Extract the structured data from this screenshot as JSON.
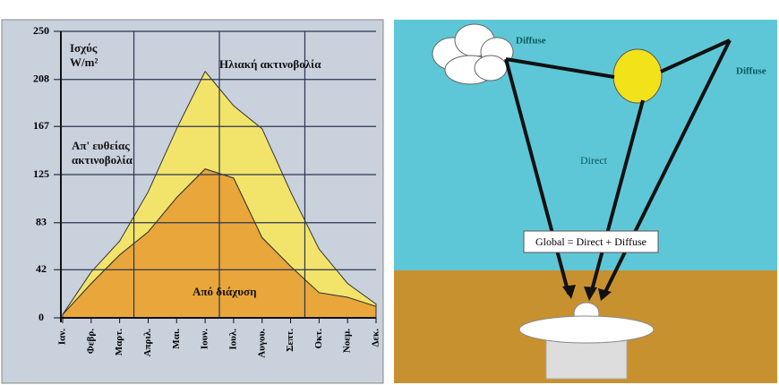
{
  "chart_data": {
    "type": "area",
    "annotation": "Ηλιακή ακτινοβολία",
    "y_label": "Ισχύς W/m²",
    "categories": [
      "Ιαν.",
      "Φεβρ.",
      "Μαρτ.",
      "Απριλ.",
      "Μαι.",
      "Ιουν.",
      "Ιουλ.",
      "Αυγου.",
      "Σεπτ.",
      "Οκτ.",
      "Νοεμ.",
      "Δεκ."
    ],
    "series": [
      {
        "name": "Από διάχυση",
        "color": "#e9a63a",
        "values": [
          3,
          30,
          55,
          75,
          105,
          130,
          122,
          70,
          45,
          22,
          18,
          10
        ]
      },
      {
        "name": "Απ' ευθείας ακτινοβολία",
        "color": "#f2e46a",
        "values": [
          0,
          10,
          12,
          35,
          60,
          85,
          63,
          95,
          65,
          38,
          12,
          2
        ]
      }
    ],
    "stacked": true,
    "ylim": [
      0,
      250
    ],
    "yticks": [
      0,
      42,
      83,
      125,
      167,
      208,
      250
    ],
    "grid": true
  },
  "diagram": {
    "labels": {
      "diffuse_left": "Diffuse",
      "diffuse_right": "Diffuse",
      "direct": "Direct",
      "global": "Global = Direct + Diffuse"
    }
  }
}
